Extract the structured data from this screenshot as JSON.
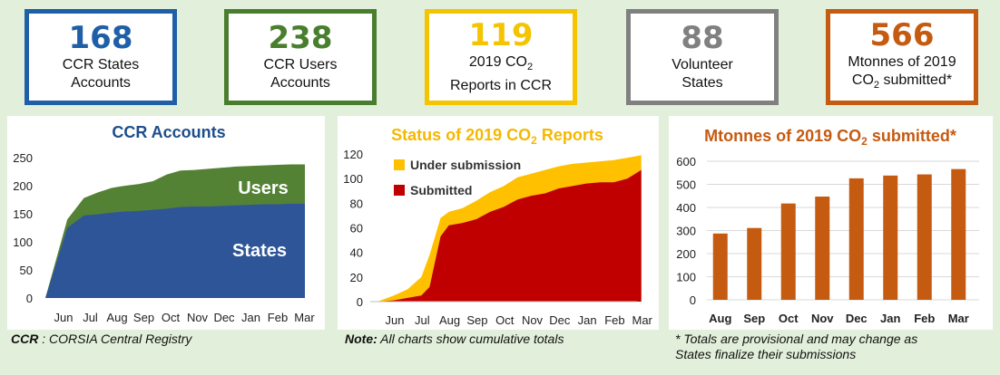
{
  "kpis": [
    {
      "value": "168",
      "line1": "CCR States",
      "line2": "Accounts",
      "color": "#1f5fa8"
    },
    {
      "value": "238",
      "line1": "CCR Users",
      "line2": "Accounts",
      "color": "#4a7e2f"
    },
    {
      "value": "119",
      "line1": "2019 CO",
      "sub": "2",
      "line2": "Reports in CCR",
      "color": "#f5c400"
    },
    {
      "value": "88",
      "line1": "Volunteer",
      "line2": "States",
      "color": "#808080"
    },
    {
      "value": "566",
      "line1": "Mtonnes of 2019",
      "line2pre": "CO",
      "line2sub": "2",
      "line2post": " submitted*",
      "color": "#c55a11"
    }
  ],
  "notes": {
    "ccr_bold": "CCR",
    "ccr_rest": " : CORSIA Central Registry",
    "note_bold": "Note:",
    "note_rest": " All charts show cumulative totals",
    "star_line1": "* Totals are provisional and may change as",
    "star_line2": "States finalize their submissions"
  },
  "chart_data": [
    {
      "type": "area",
      "title": "CCR Accounts",
      "title_color": "#1f4e8c",
      "x_ticks": [
        "Jun",
        "Jul",
        "Aug",
        "Sep",
        "Oct",
        "Nov",
        "Dec",
        "Jan",
        "Feb",
        "Mar"
      ],
      "ylim": [
        0,
        250
      ],
      "yticks": [
        0,
        50,
        100,
        150,
        200,
        250
      ],
      "x": [
        0,
        0.4,
        1.0,
        1.5,
        2.0,
        2.5,
        3.0,
        3.5,
        4.0,
        4.5,
        5.0,
        5.5,
        6.0,
        6.5,
        7.0,
        7.5,
        8.0,
        8.5,
        9.0
      ],
      "series": [
        {
          "name": "States",
          "color": "#2e5597",
          "label_color": "#ffffff",
          "values": [
            0,
            125,
            147,
            149,
            152,
            154,
            155,
            157,
            159,
            162,
            163,
            163,
            164,
            165,
            166,
            167,
            167,
            168,
            168
          ]
        },
        {
          "name": "Users",
          "color": "#548235",
          "label_color": "#ffffff",
          "values": [
            0,
            140,
            178,
            188,
            196,
            200,
            203,
            208,
            220,
            227,
            228,
            230,
            232,
            234,
            235,
            236,
            237,
            238,
            238
          ]
        }
      ]
    },
    {
      "type": "area",
      "title": "Status of 2019 CO",
      "title_sub": "2",
      "title_post": " Reports",
      "title_color": "#f5b800",
      "x_ticks": [
        "Jun",
        "Jul",
        "Aug",
        "Sep",
        "Oct",
        "Nov",
        "Dec",
        "Jan",
        "Feb",
        "Mar"
      ],
      "ylim": [
        0,
        120
      ],
      "yticks": [
        0,
        20,
        40,
        60,
        80,
        100,
        120
      ],
      "x": [
        -0.6,
        0,
        0.5,
        1.0,
        1.3,
        1.7,
        2.0,
        2.5,
        3.0,
        3.5,
        4.0,
        4.5,
        5.0,
        5.5,
        6.0,
        6.5,
        7.0,
        7.5,
        8.0,
        8.5,
        9.0
      ],
      "series": [
        {
          "name": "Submitted",
          "color": "#c00000",
          "values": [
            0,
            1,
            3,
            5,
            12,
            53,
            62,
            64,
            67,
            73,
            77,
            83,
            86,
            88,
            92,
            94,
            96,
            97,
            97,
            100,
            107
          ]
        },
        {
          "name": "Under submission",
          "color": "#ffc000",
          "values": [
            0,
            5,
            10,
            20,
            38,
            68,
            73,
            76,
            82,
            89,
            94,
            101,
            104,
            107,
            110,
            112,
            113,
            114,
            115,
            117,
            119
          ]
        }
      ]
    },
    {
      "type": "bar",
      "title": "Mtonnes of 2019 CO",
      "title_sub": "2",
      "title_post": " submitted*",
      "title_color": "#c55a11",
      "categories": [
        "Aug",
        "Sep",
        "Oct",
        "Nov",
        "Dec",
        "Jan",
        "Feb",
        "Mar"
      ],
      "values": [
        287,
        311,
        417,
        447,
        526,
        538,
        543,
        566
      ],
      "color": "#c55a11",
      "ylim": [
        0,
        600
      ],
      "yticks": [
        0,
        100,
        200,
        300,
        400,
        500,
        600
      ],
      "grid": true
    }
  ]
}
